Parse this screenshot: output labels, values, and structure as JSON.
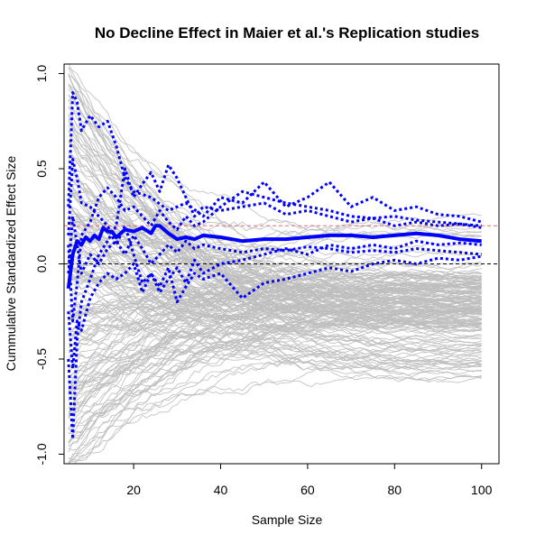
{
  "chart_data": {
    "type": "line",
    "title": "No Decline Effect in Maier et al.'s Replication studies",
    "xlabel": "Sample Size",
    "ylabel": "Cummulative Standardized Effect Size",
    "xlim": [
      4,
      104
    ],
    "ylim": [
      -1.05,
      1.05
    ],
    "x_ticks": [
      20,
      40,
      60,
      80,
      100
    ],
    "x_tick_labels": [
      "20",
      "40",
      "60",
      "80",
      "100"
    ],
    "y_ticks": [
      -1.0,
      -0.5,
      0.0,
      0.5,
      1.0
    ],
    "y_tick_labels": [
      "-1.0",
      "-0.5",
      "0.0",
      "0.5",
      "1.0"
    ],
    "grid": false,
    "legend": "none",
    "reference_lines": [
      {
        "y": 0.0,
        "style": "dashed",
        "color": "#000000"
      },
      {
        "y": 0.2,
        "style": "dashed",
        "color": "#e07070"
      }
    ],
    "simulation_band": {
      "color": "#bebebe",
      "x_start": 5,
      "x_end": 100,
      "upper_at_start": 1.05,
      "lower_at_start": -1.05,
      "upper_at_end": 0.25,
      "lower_at_end": -0.6,
      "dense_lower_at_end": -0.35,
      "center_at_end": -0.05
    },
    "series": [
      {
        "style": "solid",
        "color": "#0000ff",
        "x": [
          5,
          6,
          7,
          8,
          9,
          10,
          11,
          12,
          13,
          14,
          15,
          16,
          18,
          20,
          22,
          24,
          25,
          26,
          28,
          30,
          32,
          34,
          36,
          40,
          45,
          50,
          55,
          60,
          65,
          70,
          75,
          80,
          85,
          90,
          95,
          100
        ],
        "y": [
          -0.13,
          0.05,
          0.12,
          0.1,
          0.14,
          0.12,
          0.15,
          0.13,
          0.19,
          0.17,
          0.17,
          0.14,
          0.18,
          0.17,
          0.19,
          0.16,
          0.2,
          0.2,
          0.16,
          0.13,
          0.14,
          0.13,
          0.15,
          0.14,
          0.12,
          0.13,
          0.13,
          0.14,
          0.15,
          0.15,
          0.14,
          0.15,
          0.16,
          0.15,
          0.13,
          0.12
        ]
      },
      {
        "style": "dotted",
        "color": "#0000ff",
        "x": [
          5,
          6,
          7,
          8,
          10,
          12,
          14,
          16,
          18,
          20,
          24,
          28,
          32,
          36,
          40,
          45,
          50,
          55,
          60,
          65,
          70,
          75,
          80,
          85,
          90,
          95,
          100
        ],
        "y": [
          0.3,
          0.9,
          0.85,
          0.7,
          0.78,
          0.72,
          0.75,
          0.62,
          0.45,
          0.38,
          0.35,
          0.28,
          0.32,
          0.25,
          0.35,
          0.32,
          0.43,
          0.3,
          0.35,
          0.43,
          0.3,
          0.35,
          0.28,
          0.3,
          0.26,
          0.25,
          0.22
        ]
      },
      {
        "style": "dotted",
        "color": "#0000ff",
        "x": [
          5,
          6,
          7,
          8,
          10,
          12,
          14,
          16,
          18,
          20,
          22,
          24,
          26,
          28,
          30,
          32,
          34,
          36,
          40,
          45,
          50,
          55,
          60,
          65,
          70,
          75,
          80,
          85,
          90,
          95,
          100
        ],
        "y": [
          -0.5,
          -0.92,
          -0.4,
          -0.2,
          -0.08,
          0.05,
          0.12,
          0.2,
          0.5,
          0.35,
          0.42,
          0.48,
          0.38,
          0.52,
          0.45,
          0.35,
          0.25,
          0.3,
          0.28,
          0.3,
          0.32,
          0.26,
          0.28,
          0.25,
          0.22,
          0.24,
          0.2,
          0.22,
          0.2,
          0.21,
          0.19
        ]
      },
      {
        "style": "dotted",
        "color": "#0000ff",
        "x": [
          5,
          6,
          7,
          8,
          10,
          12,
          14,
          16,
          18,
          20,
          22,
          24,
          26,
          28,
          30,
          32,
          34,
          36,
          40,
          45,
          50,
          55,
          60,
          65,
          70,
          75,
          80,
          85,
          90,
          95,
          100
        ],
        "y": [
          -0.25,
          -0.55,
          -0.3,
          -0.35,
          -0.18,
          -0.1,
          -0.05,
          -0.08,
          -0.05,
          0.0,
          -0.15,
          -0.05,
          -0.12,
          -0.02,
          -0.2,
          -0.12,
          -0.05,
          -0.08,
          -0.05,
          -0.18,
          -0.1,
          -0.08,
          -0.05,
          -0.02,
          -0.04,
          0.0,
          0.02,
          0.0,
          0.03,
          0.02,
          0.04
        ]
      },
      {
        "style": "dotted",
        "color": "#0000ff",
        "x": [
          5,
          6,
          7,
          8,
          10,
          12,
          14,
          16,
          18,
          20,
          22,
          24,
          26,
          28,
          30,
          32,
          34,
          36,
          40,
          45,
          50,
          55,
          60,
          65,
          70,
          75,
          80,
          85,
          90,
          95,
          100
        ],
        "y": [
          0.15,
          0.55,
          0.45,
          0.32,
          0.3,
          0.25,
          0.2,
          0.1,
          0.2,
          0.05,
          -0.1,
          -0.05,
          -0.15,
          -0.08,
          -0.02,
          -0.1,
          0.02,
          -0.05,
          0.0,
          0.02,
          0.05,
          0.08,
          0.05,
          0.1,
          0.08,
          0.1,
          0.08,
          0.12,
          0.1,
          0.11,
          0.1
        ]
      },
      {
        "style": "dotted",
        "color": "#0000ff",
        "x": [
          5,
          6,
          7,
          8,
          10,
          12,
          14,
          16,
          18,
          20,
          22,
          24,
          26,
          28,
          30,
          32,
          34,
          36,
          40,
          45,
          50,
          55,
          60,
          65,
          70,
          75,
          80,
          85,
          90,
          95,
          100
        ],
        "y": [
          0.1,
          -0.3,
          -0.1,
          0.15,
          0.22,
          0.35,
          0.4,
          0.35,
          0.28,
          0.3,
          0.25,
          0.2,
          0.28,
          0.22,
          0.18,
          0.25,
          0.2,
          0.22,
          0.3,
          0.38,
          0.35,
          0.32,
          0.3,
          0.28,
          0.25,
          0.24,
          0.25,
          0.23,
          0.22,
          0.21,
          0.2
        ]
      },
      {
        "style": "dotted",
        "color": "#0000ff",
        "x": [
          5,
          6,
          7,
          8,
          10,
          12,
          14,
          16,
          18,
          20,
          22,
          24,
          26,
          28,
          30,
          32,
          34,
          36,
          40,
          45,
          50,
          55,
          60,
          65,
          70,
          75,
          80,
          85,
          90,
          95,
          100
        ],
        "y": [
          -0.05,
          0.25,
          0.1,
          -0.05,
          0.05,
          0.0,
          0.08,
          0.12,
          0.05,
          0.15,
          0.08,
          0.0,
          0.05,
          0.1,
          0.06,
          0.12,
          0.08,
          0.1,
          0.08,
          0.06,
          0.08,
          0.07,
          0.09,
          0.08,
          0.06,
          0.07,
          0.06,
          0.08,
          0.07,
          0.06,
          0.05
        ]
      }
    ]
  }
}
